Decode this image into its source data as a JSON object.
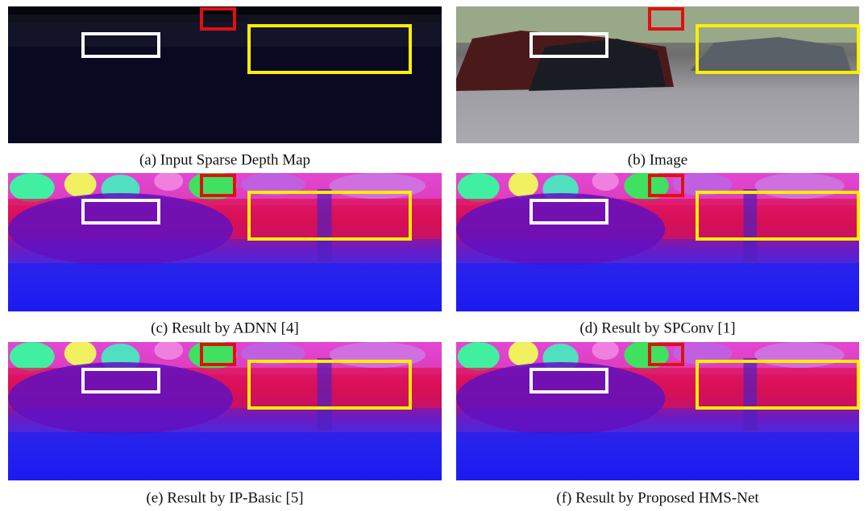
{
  "panels": [
    {
      "caption": "(a) Input Sparse Depth Map"
    },
    {
      "caption": "(b) Image"
    },
    {
      "caption": "(c) Result by ADNN [4]"
    },
    {
      "caption": "(d) Result by SPConv [1]"
    },
    {
      "caption": "(e) Result by IP-Basic [5]"
    },
    {
      "caption": "(f) Result by Proposed HMS-Net"
    }
  ]
}
